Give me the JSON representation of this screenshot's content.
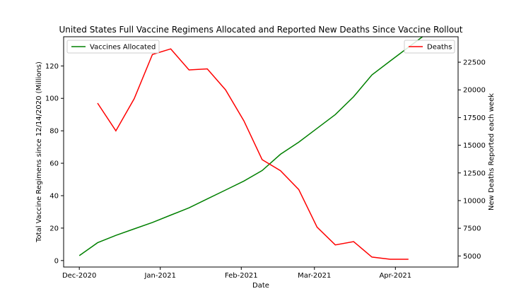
{
  "chart_data": {
    "type": "line",
    "title": "United States Full Vaccine Regimens Allocated and Reported New Deaths Since Vaccine Rollout",
    "xlabel": "Date",
    "ylabel_left": "Total Vaccine Regimens since 12/14/2020 (Millions)",
    "ylabel_right": "New Deaths Reported each week",
    "x_ticks": [
      {
        "date": "2020-12-01",
        "label": "Dec-2020"
      },
      {
        "date": "2021-01-01",
        "label": "Jan-2021"
      },
      {
        "date": "2021-02-01",
        "label": "Feb-2021"
      },
      {
        "date": "2021-03-01",
        "label": "Mar-2021"
      },
      {
        "date": "2021-04-01",
        "label": "Apr-2021"
      }
    ],
    "xlim": [
      "2020-11-25",
      "2021-04-25"
    ],
    "y_left": {
      "lim": [
        -4,
        138
      ],
      "ticks": [
        0,
        20,
        40,
        60,
        80,
        100,
        120
      ]
    },
    "y_right": {
      "lim": [
        4000,
        24800
      ],
      "ticks": [
        5000,
        7500,
        10000,
        12500,
        15000,
        17500,
        20000,
        22500
      ]
    },
    "series": [
      {
        "name": "Vaccines Allocated",
        "axis": "left",
        "color": "#008000",
        "x": [
          "2020-12-01",
          "2020-12-08",
          "2020-12-15",
          "2020-12-22",
          "2020-12-29",
          "2021-01-05",
          "2021-01-12",
          "2021-01-19",
          "2021-01-26",
          "2021-02-02",
          "2021-02-09",
          "2021-02-16",
          "2021-02-23",
          "2021-03-02",
          "2021-03-09",
          "2021-03-16",
          "2021-03-23",
          "2021-03-30",
          "2021-04-06",
          "2021-04-13",
          "2021-04-20"
        ],
        "values": [
          3,
          11,
          15.5,
          19.5,
          23.5,
          28,
          32.5,
          38,
          43.5,
          49,
          55.5,
          65.5,
          73,
          81.5,
          90,
          101,
          114.5,
          123,
          131.5,
          140,
          148
        ]
      },
      {
        "name": "Deaths",
        "axis": "right",
        "color": "#ff0000",
        "x": [
          "2020-12-08",
          "2020-12-15",
          "2020-12-22",
          "2020-12-29",
          "2021-01-05",
          "2021-01-12",
          "2021-01-19",
          "2021-01-26",
          "2021-02-02",
          "2021-02-09",
          "2021-02-16",
          "2021-02-23",
          "2021-03-02",
          "2021-03-09",
          "2021-03-16",
          "2021-03-23",
          "2021-03-30",
          "2021-04-06"
        ],
        "values": [
          18800,
          16300,
          19200,
          23200,
          23700,
          21800,
          21900,
          20000,
          17200,
          13700,
          12700,
          11000,
          7600,
          6000,
          6300,
          4900,
          4700,
          4700
        ]
      }
    ]
  }
}
